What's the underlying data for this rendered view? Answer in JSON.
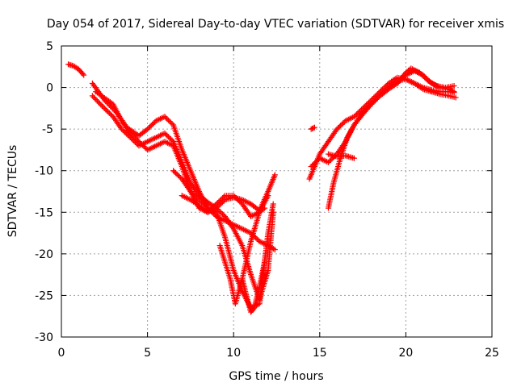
{
  "chart_data": {
    "type": "scatter",
    "title": "Day 054 of 2017, Sidereal Day-to-day VTEC variation (SDTVAR) for receiver xmis",
    "xlabel": "GPS time / hours",
    "ylabel": "SDTVAR / TECUs",
    "xlim": [
      0,
      25
    ],
    "ylim": [
      -30,
      5
    ],
    "xticks": [
      "0",
      "5",
      "10",
      "15",
      "20",
      "25"
    ],
    "yticks": [
      "5",
      "0",
      "-5",
      "-10",
      "-15",
      "-20",
      "-25",
      "-30"
    ],
    "grid": true,
    "marker": "+",
    "color": "#ff0000",
    "series": [
      {
        "x": [
          0.4,
          0.7,
          1.0,
          1.3
        ],
        "y": [
          2.8,
          2.6,
          2.2,
          1.5
        ]
      },
      {
        "x": [
          1.8,
          2.5,
          3.2,
          3.8,
          4.5,
          5.0,
          5.5,
          6.0,
          6.5,
          7.0,
          7.6,
          8.0,
          8.5,
          9.0,
          9.5,
          10.0,
          10.5,
          11.0,
          11.5,
          12.0,
          12.4
        ],
        "y": [
          0.5,
          -1.5,
          -3.0,
          -4.8,
          -5.8,
          -5.0,
          -4.0,
          -3.5,
          -4.5,
          -7.5,
          -10.5,
          -12.5,
          -14.5,
          -15.5,
          -16.0,
          -16.5,
          -17.0,
          -17.5,
          -18.5,
          -19.0,
          -19.5
        ]
      },
      {
        "x": [
          1.8,
          2.5,
          3.0,
          3.5,
          4.0,
          4.5,
          5.0,
          5.5,
          6.0,
          6.5,
          7.0,
          7.5,
          8.0,
          8.5,
          9.0,
          9.5,
          10.0,
          10.5,
          11.0,
          11.5,
          12.0,
          12.3
        ],
        "y": [
          -1.0,
          -2.5,
          -3.5,
          -5.0,
          -6.0,
          -7.0,
          -6.5,
          -6.0,
          -5.5,
          -6.5,
          -9.0,
          -11.5,
          -13.0,
          -13.8,
          -14.5,
          -15.5,
          -17.0,
          -19.0,
          -22.5,
          -25.5,
          -22.0,
          -15.0
        ]
      },
      {
        "x": [
          2.0,
          3.0,
          3.5,
          4.0,
          4.5,
          5.0,
          5.5,
          6.0,
          6.5,
          7.0,
          7.5,
          8.0,
          8.5,
          9.0,
          9.5,
          10.0,
          10.5,
          11.0,
          11.5,
          12.0,
          12.3
        ],
        "y": [
          -0.5,
          -2.0,
          -4.0,
          -5.5,
          -6.5,
          -7.5,
          -7.0,
          -6.5,
          -7.0,
          -9.5,
          -12.5,
          -13.5,
          -14.5,
          -15.0,
          -18.0,
          -22.0,
          -24.5,
          -26.5,
          -26.0,
          -17.5,
          -14.0
        ]
      },
      {
        "x": [
          6.5,
          7.0,
          7.5,
          8.0,
          8.5,
          9.0,
          9.5,
          10.0,
          10.5,
          11.0,
          11.5,
          12.0,
          12.4
        ],
        "y": [
          -10.0,
          -11.0,
          -12.5,
          -14.5,
          -15.0,
          -14.5,
          -13.5,
          -13.2,
          -13.5,
          -14.0,
          -14.8,
          -12.5,
          -10.5
        ]
      },
      {
        "x": [
          7.0,
          7.5,
          8.0,
          8.5,
          9.0,
          9.5,
          10.0,
          10.5,
          11.0,
          11.5,
          12.0
        ],
        "y": [
          -13.0,
          -13.5,
          -14.2,
          -15.0,
          -14.0,
          -13.0,
          -13.0,
          -14.0,
          -15.5,
          -15.0,
          -13.0
        ]
      },
      {
        "x": [
          9.2,
          9.5,
          9.8,
          10.1,
          10.5,
          11.0,
          11.5,
          11.8
        ],
        "y": [
          -19.0,
          -21.0,
          -23.0,
          -26.0,
          -23.0,
          -18.5,
          -15.0,
          -14.5
        ]
      },
      {
        "x": [
          10.5,
          10.8,
          11.0,
          11.2,
          11.5,
          11.8
        ],
        "y": [
          -23.0,
          -25.5,
          -27.0,
          -26.5,
          -24.0,
          -21.0
        ]
      },
      {
        "x": [
          14.5,
          14.7
        ],
        "y": [
          -5.0,
          -4.8
        ]
      },
      {
        "x": [
          14.4,
          15.0,
          15.5,
          16.0,
          16.5,
          17.0,
          17.5,
          18.0,
          18.5,
          19.0,
          19.5,
          20.0,
          20.5,
          21.0,
          21.5,
          22.0,
          22.5,
          22.8
        ],
        "y": [
          -11.0,
          -8.0,
          -6.5,
          -5.0,
          -4.0,
          -3.5,
          -2.5,
          -1.5,
          -0.5,
          0.5,
          1.2,
          1.0,
          0.5,
          0.0,
          -0.3,
          -0.5,
          -0.5,
          -0.6
        ]
      },
      {
        "x": [
          14.5,
          15.0,
          15.5,
          16.0,
          16.5,
          17.0,
          17.5,
          18.0,
          18.5,
          19.0,
          19.5,
          20.0,
          20.5,
          21.0,
          21.5,
          22.0,
          22.5,
          22.8
        ],
        "y": [
          -9.5,
          -8.5,
          -9.0,
          -8.0,
          -6.5,
          -4.5,
          -3.0,
          -2.0,
          -1.0,
          -0.2,
          0.5,
          1.5,
          2.0,
          1.5,
          0.5,
          0.0,
          -0.2,
          -0.5
        ]
      },
      {
        "x": [
          15.5,
          15.8,
          16.2,
          16.6,
          17.0,
          17.5,
          18.0,
          18.5,
          19.0,
          19.5,
          20.0,
          20.5,
          21.0,
          21.5,
          22.0,
          22.5,
          22.9
        ],
        "y": [
          -14.5,
          -11.5,
          -8.5,
          -6.0,
          -4.5,
          -3.2,
          -2.0,
          -1.0,
          0.0,
          0.8,
          1.0,
          0.5,
          -0.2,
          -0.5,
          -0.8,
          -1.0,
          -1.2
        ]
      },
      {
        "x": [
          15.5,
          16.0,
          16.5,
          17.0
        ],
        "y": [
          -8.0,
          -8.3,
          -8.2,
          -8.5
        ]
      },
      {
        "x": [
          19.5,
          20.0,
          20.3,
          20.8,
          21.3,
          21.8,
          22.3,
          22.8
        ],
        "y": [
          0.5,
          1.8,
          2.3,
          1.8,
          0.8,
          0.2,
          0.0,
          0.2
        ]
      }
    ]
  }
}
